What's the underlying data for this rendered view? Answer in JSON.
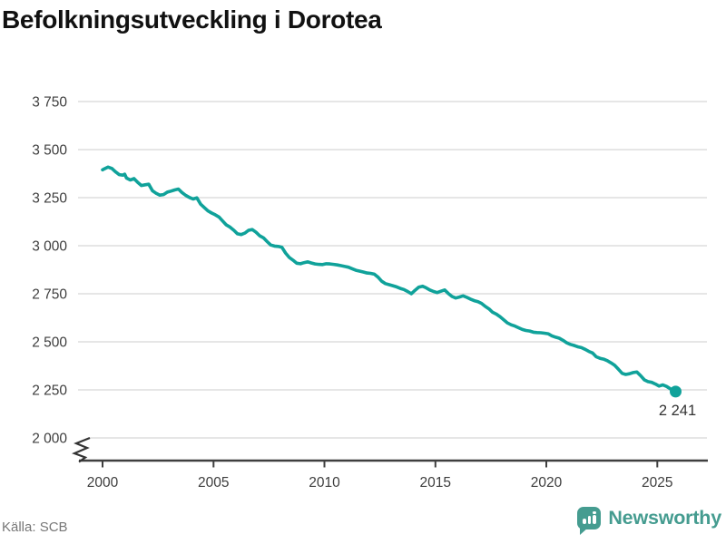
{
  "title": "Befolkningsutveckling i Dorotea",
  "source": "Källa: SCB",
  "branding": {
    "name": "Newsworthy"
  },
  "colors": {
    "line": "#10A29A",
    "brand": "#459C90",
    "grid": "#E2E2E2",
    "axis": "#3F3F3F",
    "tick_text": "#3D3D3D",
    "title_text": "#111111",
    "source_text": "#777777",
    "end_label_text": "#333333"
  },
  "chart_data": {
    "type": "line",
    "title": "Befolkningsutveckling i Dorotea",
    "xlabel": "",
    "ylabel": "",
    "x_ticks": [
      2000,
      2005,
      2010,
      2015,
      2020,
      2025
    ],
    "y_ticks": [
      2000,
      2250,
      2500,
      2750,
      3000,
      3250,
      3500,
      3750
    ],
    "y_tick_labels": [
      "2 000",
      "2 250",
      "2 500",
      "2 750",
      "3 000",
      "3 250",
      "3 500",
      "3 750"
    ],
    "xlim": [
      1998.9,
      2027.3
    ],
    "ylim": [
      2000,
      3850
    ],
    "grid": true,
    "axis_break_at_y": 2000,
    "legend": "none",
    "end_value": 2241,
    "end_label": "2 241",
    "series": [
      {
        "name": "Befolkning i Dorotea",
        "points": [
          [
            2000.0,
            3395
          ],
          [
            2000.08,
            3400
          ],
          [
            2000.25,
            3409
          ],
          [
            2000.42,
            3402
          ],
          [
            2000.58,
            3385
          ],
          [
            2000.75,
            3370
          ],
          [
            2000.92,
            3367
          ],
          [
            2001.0,
            3372
          ],
          [
            2001.08,
            3352
          ],
          [
            2001.25,
            3342
          ],
          [
            2001.42,
            3349
          ],
          [
            2001.58,
            3330
          ],
          [
            2001.75,
            3313
          ],
          [
            2001.92,
            3317
          ],
          [
            2002.08,
            3320
          ],
          [
            2002.25,
            3286
          ],
          [
            2002.42,
            3272
          ],
          [
            2002.58,
            3263
          ],
          [
            2002.75,
            3266
          ],
          [
            2002.92,
            3279
          ],
          [
            2003.08,
            3284
          ],
          [
            2003.25,
            3290
          ],
          [
            2003.42,
            3295
          ],
          [
            2003.58,
            3277
          ],
          [
            2003.75,
            3262
          ],
          [
            2003.92,
            3251
          ],
          [
            2004.08,
            3243
          ],
          [
            2004.25,
            3249
          ],
          [
            2004.42,
            3216
          ],
          [
            2004.58,
            3199
          ],
          [
            2004.75,
            3181
          ],
          [
            2004.92,
            3170
          ],
          [
            2005.08,
            3161
          ],
          [
            2005.25,
            3149
          ],
          [
            2005.42,
            3128
          ],
          [
            2005.58,
            3108
          ],
          [
            2005.75,
            3096
          ],
          [
            2005.92,
            3080
          ],
          [
            2006.08,
            3062
          ],
          [
            2006.25,
            3058
          ],
          [
            2006.42,
            3066
          ],
          [
            2006.58,
            3080
          ],
          [
            2006.75,
            3084
          ],
          [
            2006.92,
            3070
          ],
          [
            2007.08,
            3052
          ],
          [
            2007.25,
            3041
          ],
          [
            2007.42,
            3021
          ],
          [
            2007.58,
            3004
          ],
          [
            2007.75,
            2998
          ],
          [
            2007.92,
            2996
          ],
          [
            2008.08,
            2992
          ],
          [
            2008.25,
            2962
          ],
          [
            2008.42,
            2938
          ],
          [
            2008.58,
            2925
          ],
          [
            2008.75,
            2909
          ],
          [
            2008.92,
            2906
          ],
          [
            2009.08,
            2912
          ],
          [
            2009.25,
            2916
          ],
          [
            2009.42,
            2910
          ],
          [
            2009.58,
            2905
          ],
          [
            2009.75,
            2903
          ],
          [
            2009.92,
            2902
          ],
          [
            2010.08,
            2906
          ],
          [
            2010.25,
            2905
          ],
          [
            2010.42,
            2903
          ],
          [
            2010.58,
            2900
          ],
          [
            2010.75,
            2896
          ],
          [
            2010.92,
            2892
          ],
          [
            2011.08,
            2888
          ],
          [
            2011.25,
            2880
          ],
          [
            2011.42,
            2872
          ],
          [
            2011.58,
            2868
          ],
          [
            2011.75,
            2863
          ],
          [
            2011.92,
            2858
          ],
          [
            2012.08,
            2856
          ],
          [
            2012.25,
            2852
          ],
          [
            2012.42,
            2836
          ],
          [
            2012.58,
            2815
          ],
          [
            2012.75,
            2803
          ],
          [
            2012.92,
            2797
          ],
          [
            2013.08,
            2792
          ],
          [
            2013.25,
            2786
          ],
          [
            2013.42,
            2778
          ],
          [
            2013.58,
            2772
          ],
          [
            2013.75,
            2762
          ],
          [
            2013.92,
            2750
          ],
          [
            2014.08,
            2768
          ],
          [
            2014.25,
            2784
          ],
          [
            2014.42,
            2789
          ],
          [
            2014.58,
            2781
          ],
          [
            2014.75,
            2770
          ],
          [
            2014.92,
            2762
          ],
          [
            2015.08,
            2756
          ],
          [
            2015.25,
            2763
          ],
          [
            2015.42,
            2770
          ],
          [
            2015.58,
            2752
          ],
          [
            2015.75,
            2736
          ],
          [
            2015.92,
            2728
          ],
          [
            2016.08,
            2733
          ],
          [
            2016.25,
            2739
          ],
          [
            2016.42,
            2731
          ],
          [
            2016.58,
            2722
          ],
          [
            2016.75,
            2714
          ],
          [
            2016.92,
            2709
          ],
          [
            2017.08,
            2700
          ],
          [
            2017.25,
            2684
          ],
          [
            2017.42,
            2671
          ],
          [
            2017.58,
            2654
          ],
          [
            2017.75,
            2644
          ],
          [
            2017.92,
            2630
          ],
          [
            2018.08,
            2614
          ],
          [
            2018.25,
            2598
          ],
          [
            2018.42,
            2588
          ],
          [
            2018.58,
            2582
          ],
          [
            2018.75,
            2573
          ],
          [
            2018.92,
            2564
          ],
          [
            2019.08,
            2559
          ],
          [
            2019.25,
            2556
          ],
          [
            2019.42,
            2550
          ],
          [
            2019.58,
            2548
          ],
          [
            2019.75,
            2547
          ],
          [
            2019.92,
            2545
          ],
          [
            2020.08,
            2542
          ],
          [
            2020.25,
            2531
          ],
          [
            2020.42,
            2524
          ],
          [
            2020.58,
            2519
          ],
          [
            2020.75,
            2508
          ],
          [
            2020.92,
            2495
          ],
          [
            2021.08,
            2487
          ],
          [
            2021.25,
            2481
          ],
          [
            2021.42,
            2474
          ],
          [
            2021.58,
            2470
          ],
          [
            2021.75,
            2461
          ],
          [
            2021.92,
            2450
          ],
          [
            2022.08,
            2442
          ],
          [
            2022.25,
            2422
          ],
          [
            2022.42,
            2414
          ],
          [
            2022.58,
            2410
          ],
          [
            2022.75,
            2402
          ],
          [
            2022.92,
            2390
          ],
          [
            2023.08,
            2378
          ],
          [
            2023.25,
            2357
          ],
          [
            2023.42,
            2336
          ],
          [
            2023.58,
            2330
          ],
          [
            2023.75,
            2334
          ],
          [
            2023.92,
            2340
          ],
          [
            2024.08,
            2343
          ],
          [
            2024.25,
            2324
          ],
          [
            2024.42,
            2302
          ],
          [
            2024.58,
            2293
          ],
          [
            2024.75,
            2289
          ],
          [
            2024.92,
            2280
          ],
          [
            2025.08,
            2270
          ],
          [
            2025.25,
            2276
          ],
          [
            2025.42,
            2268
          ],
          [
            2025.58,
            2256
          ],
          [
            2025.83,
            2241
          ]
        ]
      }
    ]
  }
}
